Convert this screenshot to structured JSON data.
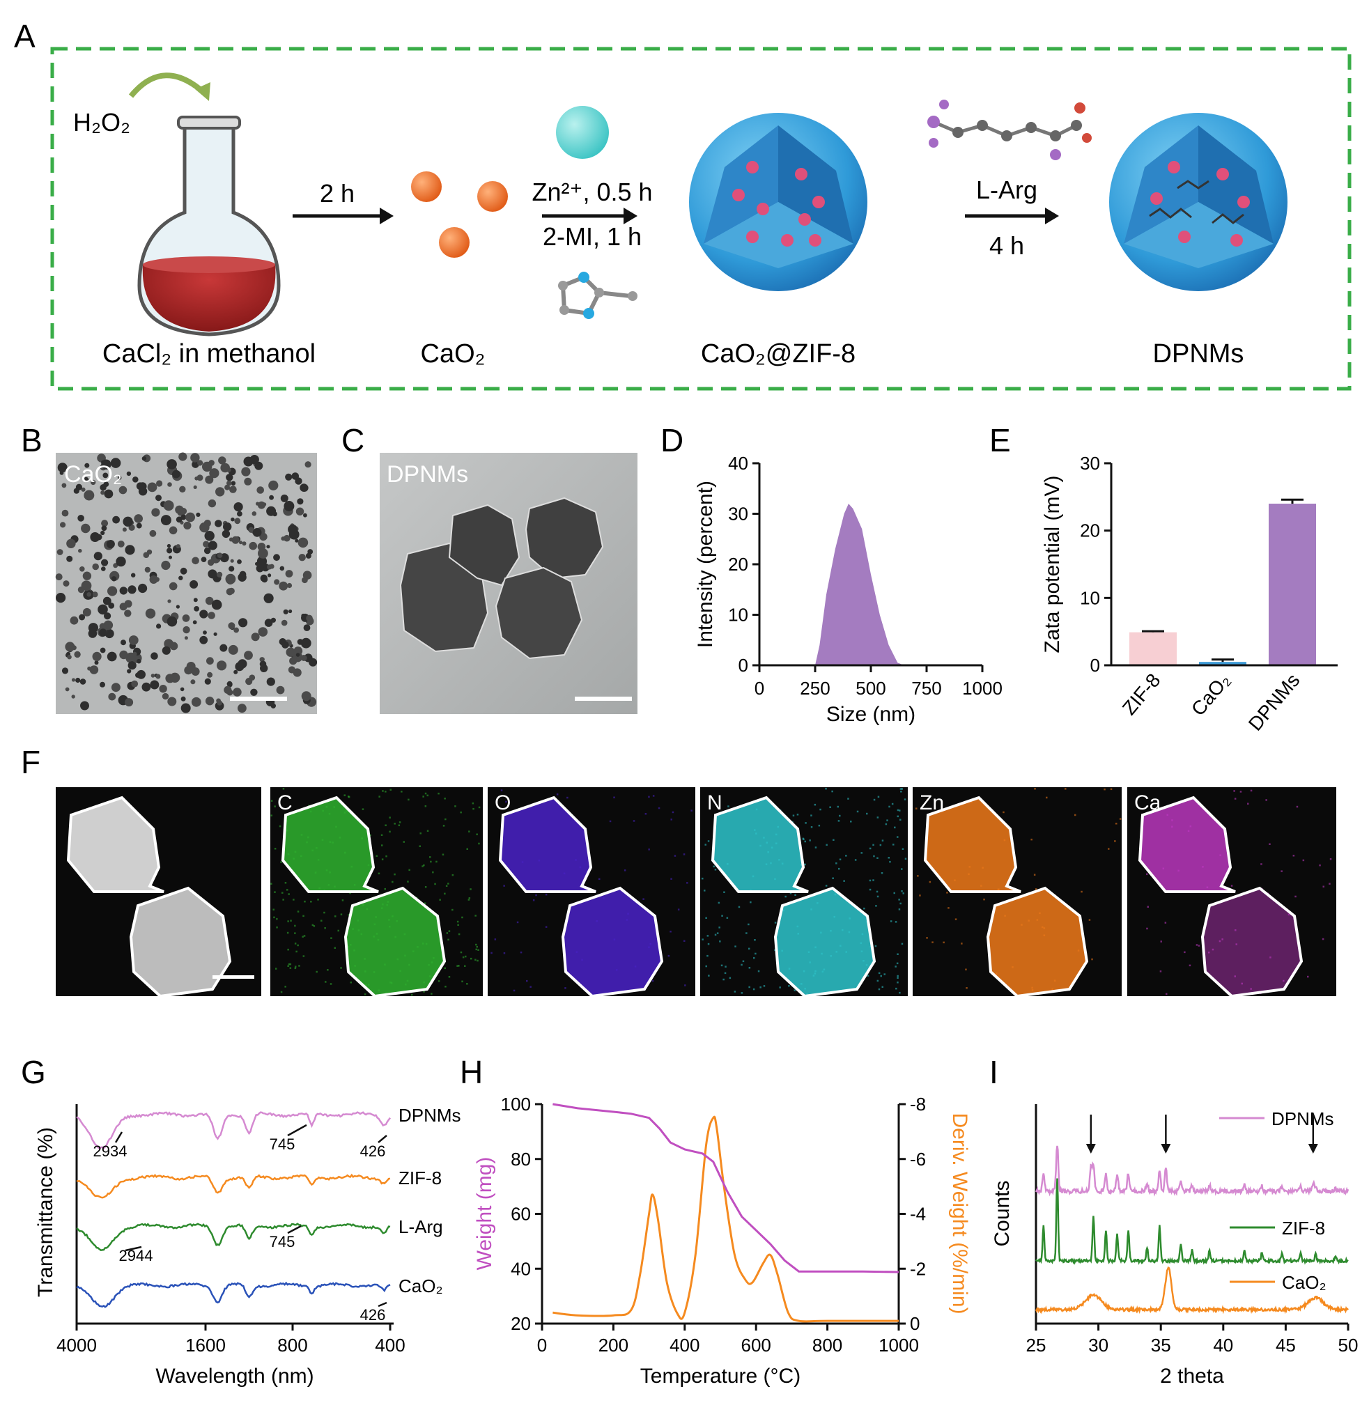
{
  "panel_letters": [
    "A",
    "B",
    "C",
    "D",
    "E",
    "F",
    "G",
    "H",
    "I"
  ],
  "schematic": {
    "h2o2_label": "H₂O₂",
    "flask_label": "CaCl₂ in methanol",
    "step1_label": "2 h",
    "cao2_label": "CaO₂",
    "step2_top": "Zn²⁺, 0.5 h",
    "step2_bottom": "2-MI, 1 h",
    "zif_label": "CaO₂@ZIF-8",
    "step3_top": "L-Arg",
    "step3_bottom": "4 h",
    "dpnm_label": "DPNMs"
  },
  "tem": {
    "b_label": "CaO₂",
    "c_label": "DPNMs"
  },
  "mapping": {
    "labels": [
      "",
      "C",
      "O",
      "N",
      "Zn",
      "Ca"
    ],
    "colors": [
      "#ffffff",
      "#2fb32f",
      "#4a22c8",
      "#2ec6cc",
      "#f07a1a",
      "#c43ac8"
    ]
  },
  "colors": {
    "purple": "#a47cc0",
    "pink": "#f7cfd3",
    "blue_bar": "#3d9ad6",
    "green_dash": "#3aad48",
    "orange": "#f58a1f",
    "magenta": "#c04fc0"
  },
  "chart_data": [
    {
      "panel": "D",
      "type": "area",
      "xlabel": "Size (nm)",
      "ylabel": "Intensity (percent)",
      "xlim": [
        0,
        1000
      ],
      "ylim": [
        0,
        40
      ],
      "xticks": [
        0,
        250,
        500,
        750,
        1000
      ],
      "yticks": [
        0,
        10,
        20,
        30,
        40
      ],
      "x": [
        0,
        250,
        270,
        300,
        340,
        380,
        400,
        420,
        460,
        500,
        540,
        580,
        620,
        650,
        1000
      ],
      "y": [
        0,
        0,
        4,
        14,
        23,
        30,
        32,
        31,
        27,
        18,
        10,
        4,
        0.5,
        0,
        0
      ]
    },
    {
      "panel": "E",
      "type": "bar",
      "ylabel": "Zata potential (mV)",
      "ylim": [
        0,
        30
      ],
      "yticks": [
        0,
        10,
        20,
        30
      ],
      "categories": [
        "ZIF-8",
        "CaO₂",
        "DPNMs"
      ],
      "values": [
        4.9,
        0.5,
        24.0
      ],
      "errors": [
        0.15,
        0.35,
        0.6
      ]
    },
    {
      "panel": "G",
      "type": "line",
      "xlabel": "Wavelength (nm)",
      "ylabel": "Transmittance (%)",
      "xticks": [
        "4000",
        "1600",
        "800",
        "400"
      ],
      "series": [
        {
          "name": "DPNMs",
          "annotations": [
            "2934",
            "745",
            "426"
          ]
        },
        {
          "name": "ZIF-8",
          "annotations": []
        },
        {
          "name": "L-Arg",
          "annotations": [
            "745",
            "2944"
          ]
        },
        {
          "name": "CaO₂",
          "annotations": [
            "426"
          ]
        }
      ]
    },
    {
      "panel": "H",
      "type": "line",
      "xlabel": "Temperature (°C)",
      "ylabel": "Weight (mg)",
      "y2label": "Deriv. Weight (%/min)",
      "xlim": [
        0,
        1000
      ],
      "ylim": [
        20,
        100
      ],
      "y2lim": [
        0,
        -8
      ],
      "xticks": [
        0,
        200,
        400,
        600,
        800,
        1000
      ],
      "yticks": [
        20,
        40,
        60,
        80,
        100
      ],
      "y2ticks": [
        "0",
        "-2",
        "-4",
        "-6",
        "-8"
      ],
      "series": [
        {
          "name": "Weight",
          "x": [
            30,
            100,
            200,
            250,
            300,
            330,
            360,
            400,
            450,
            480,
            520,
            560,
            600,
            640,
            680,
            720,
            800,
            900,
            1000
          ],
          "y": [
            100,
            98.5,
            97.2,
            96.5,
            95,
            91,
            86,
            83.5,
            82,
            79,
            68,
            59,
            54,
            49,
            43,
            39,
            39,
            39,
            38.8
          ]
        },
        {
          "name": "Deriv. Weight",
          "x": [
            30,
            100,
            200,
            250,
            275,
            300,
            310,
            325,
            350,
            380,
            400,
            430,
            460,
            480,
            490,
            510,
            540,
            570,
            590,
            620,
            640,
            660,
            690,
            720,
            800,
            1000
          ],
          "y": [
            -0.4,
            -0.3,
            -0.3,
            -0.5,
            -1.8,
            -4.0,
            -4.7,
            -3.8,
            -1.5,
            -0.35,
            -0.4,
            -2.5,
            -6.5,
            -7.5,
            -7.1,
            -5,
            -2.5,
            -1.6,
            -1.5,
            -2.2,
            -2.5,
            -1.8,
            -0.4,
            -0.1,
            -0.1,
            -0.1
          ]
        }
      ]
    },
    {
      "panel": "I",
      "type": "line",
      "xlabel": "2 theta",
      "ylabel": "Counts",
      "xlim": [
        25,
        50
      ],
      "xticks": [
        25,
        30,
        35,
        40,
        45,
        50
      ],
      "series": [
        {
          "name": "DPNMs",
          "peak_marks": [
            29.4,
            35.4,
            47.2
          ]
        },
        {
          "name": "ZIF-8"
        },
        {
          "name": "CaO₂",
          "peaks": [
            29.6,
            35.6,
            47.4
          ]
        }
      ]
    }
  ]
}
